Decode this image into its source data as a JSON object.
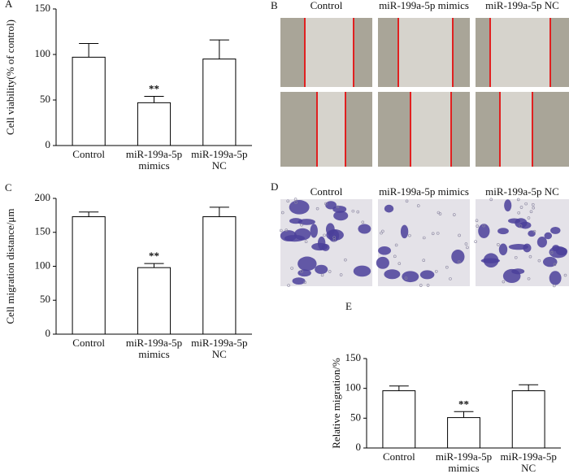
{
  "chart_data": [
    {
      "type": "bar",
      "panel": "A",
      "ylabel": "Cell viability(% of control)",
      "categories": [
        [
          "Control"
        ],
        [
          "miR-199a-5p",
          "mimics"
        ],
        [
          "miR-199a-5p",
          "NC"
        ]
      ],
      "values": [
        97,
        47,
        95
      ],
      "errors": [
        15,
        7,
        21
      ],
      "annotations": [
        null,
        "**",
        null
      ],
      "ylim": [
        0,
        150
      ],
      "yticks": [
        0,
        50,
        100,
        150
      ],
      "color": "#ffffff"
    },
    {
      "type": "bar",
      "panel": "C",
      "ylabel": "Cell migration distance/μm",
      "categories": [
        [
          "Control"
        ],
        [
          "miR-199a-5p",
          "mimics"
        ],
        [
          "miR-199a-5p",
          "NC"
        ]
      ],
      "values": [
        173,
        98,
        173
      ],
      "errors": [
        7,
        6,
        14
      ],
      "annotations": [
        null,
        "**",
        null
      ],
      "ylim": [
        0,
        200
      ],
      "yticks": [
        0,
        50,
        100,
        150,
        200
      ],
      "color": "#ffffff"
    },
    {
      "type": "bar",
      "panel": "E",
      "ylabel": "Relative migration/%",
      "categories": [
        [
          "Control"
        ],
        [
          "miR-199a-5p",
          "mimics"
        ],
        [
          "miR-199a-5p",
          "NC"
        ]
      ],
      "values": [
        96,
        51,
        96
      ],
      "errors": [
        8,
        10,
        10
      ],
      "annotations": [
        null,
        "**",
        null
      ],
      "ylim": [
        0,
        150
      ],
      "yticks": [
        0,
        50,
        100,
        150
      ],
      "color": "#ffffff"
    }
  ],
  "images": [
    {
      "panel": "B",
      "columns": [
        "Control",
        "miR-199a-5p  mimics",
        "miR-199a-5p NC"
      ]
    },
    {
      "panel": "D",
      "columns": [
        "Control",
        "miR-199a-5p  mimics",
        "miR-199a-5p NC"
      ]
    }
  ]
}
